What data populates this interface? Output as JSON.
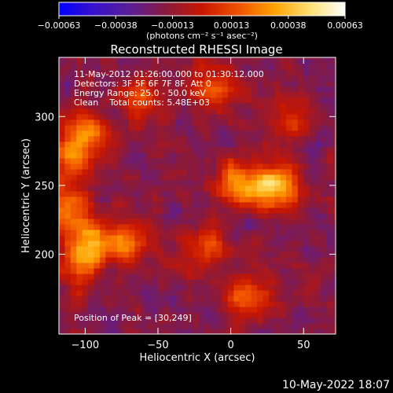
{
  "chart_data": {
    "type": "heatmap",
    "title": "Reconstructed RHESSI Image",
    "xlabel": "Heliocentric X (arcsec)",
    "ylabel": "Heliocentric Y (arcsec)",
    "xlim": [
      -118,
      72
    ],
    "ylim": [
      142,
      343
    ],
    "xticks": [
      -100,
      -50,
      0,
      50
    ],
    "xtick_labels": [
      "−100",
      "−50",
      "0",
      "50"
    ],
    "yticks": [
      200,
      250,
      300
    ],
    "ytick_labels": [
      "200",
      "250",
      "300"
    ],
    "colorbar": {
      "range": [
        -0.00063,
        0.00063
      ],
      "ticks": [
        -0.00063,
        -0.00038,
        -0.00013,
        0.00013,
        0.00038,
        0.00063
      ],
      "tick_labels": [
        "−0.00063",
        "−0.00038",
        "−0.00013",
        "0.00013",
        "0.00038",
        "0.00063"
      ],
      "unit_label": "(photons cm⁻² s⁻¹ asec⁻²)",
      "colors": [
        "#0000ff",
        "#3a12c8",
        "#5a1e96",
        "#8a1a3c",
        "#c81600",
        "#f05000",
        "#ffa000",
        "#ffe070",
        "#ffffff"
      ]
    },
    "annotations": [
      "11-May-2012 01:26:00.000 to 01:30:12.000",
      "Detectors: 3F 5F 6F 7F 8F, Att 0",
      "Energy Range: 25.0 - 50.0 keV",
      "Clean    Total counts: 5.48E+03"
    ],
    "peak_text": "Position of Peak = [30,249]",
    "peak": [
      30,
      249
    ],
    "sources": [
      {
        "x": 30,
        "y": 249,
        "peak": 0.00063
      },
      {
        "x": 6,
        "y": 252,
        "peak": 0.00045
      },
      {
        "x": -100,
        "y": 288,
        "peak": 0.00036
      },
      {
        "x": -110,
        "y": 268,
        "peak": 0.0004
      },
      {
        "x": -112,
        "y": 233,
        "peak": 0.00038
      },
      {
        "x": -98,
        "y": 208,
        "peak": 0.0005
      },
      {
        "x": -72,
        "y": 208,
        "peak": 0.0004
      },
      {
        "x": -18,
        "y": 206,
        "peak": 0.00028
      },
      {
        "x": 12,
        "y": 170,
        "peak": 0.00036
      },
      {
        "x": -60,
        "y": 312,
        "peak": 0.00028
      },
      {
        "x": 42,
        "y": 300,
        "peak": 0.00022
      },
      {
        "x": -10,
        "y": 323,
        "peak": 0.00026
      },
      {
        "x": -108,
        "y": 188,
        "peak": 0.00024
      }
    ]
  },
  "footer": {
    "timestamp": "10-May-2022 18:07"
  }
}
